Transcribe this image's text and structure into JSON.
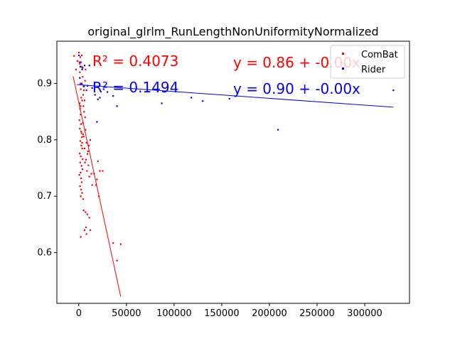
{
  "chart_data": {
    "type": "scatter",
    "title": "original_glrlm_RunLengthNonUniformityNormalized",
    "xlabel": "",
    "ylabel": "",
    "xlim": [
      -23000,
      347000
    ],
    "ylim": [
      0.51,
      0.975
    ],
    "x_ticks": [
      0,
      50000,
      100000,
      150000,
      200000,
      250000,
      300000
    ],
    "x_tick_labels": [
      "0",
      "50000",
      "100000",
      "150000",
      "200000",
      "250000",
      "300000"
    ],
    "y_ticks": [
      0.6,
      0.7,
      0.8,
      0.9
    ],
    "y_tick_labels": [
      "0.6",
      "0.7",
      "0.8",
      "0.9"
    ],
    "grid": false,
    "legend_position": "top-right",
    "series": [
      {
        "name": "ComBat",
        "color": "#ff0000",
        "points": [
          [
            -5000,
            0.949
          ],
          [
            -3000,
            0.925
          ],
          [
            -1500,
            0.94
          ],
          [
            0,
            0.955
          ],
          [
            500,
            0.938
          ],
          [
            1000,
            0.92
          ],
          [
            1500,
            0.9
          ],
          [
            2000,
            0.89
          ],
          [
            2500,
            0.875
          ],
          [
            800,
            0.865
          ],
          [
            1200,
            0.855
          ],
          [
            1800,
            0.845
          ],
          [
            600,
            0.835
          ],
          [
            2200,
            0.828
          ],
          [
            1000,
            0.82
          ],
          [
            2800,
            0.812
          ],
          [
            3200,
            0.805
          ],
          [
            1500,
            0.798
          ],
          [
            2600,
            0.79
          ],
          [
            3500,
            0.785
          ],
          [
            900,
            0.776
          ],
          [
            2000,
            0.771
          ],
          [
            4000,
            0.766
          ],
          [
            1400,
            0.76
          ],
          [
            2800,
            0.754
          ],
          [
            3800,
            0.748
          ],
          [
            1800,
            0.742
          ],
          [
            500,
            0.738
          ],
          [
            2400,
            0.732
          ],
          [
            3000,
            0.725
          ],
          [
            1200,
            0.718
          ],
          [
            2500,
            0.712
          ],
          [
            3500,
            0.706
          ],
          [
            2000,
            0.7
          ],
          [
            4500,
            0.695
          ],
          [
            5200,
            0.888
          ],
          [
            6000,
            0.87
          ],
          [
            4800,
            0.86
          ],
          [
            5500,
            0.85
          ],
          [
            6500,
            0.84
          ],
          [
            4200,
            0.83
          ],
          [
            7000,
            0.818
          ],
          [
            5000,
            0.806
          ],
          [
            8000,
            0.795
          ],
          [
            6000,
            0.785
          ],
          [
            9000,
            0.775
          ],
          [
            7500,
            0.765
          ],
          [
            10000,
            0.755
          ],
          [
            8500,
            0.745
          ],
          [
            11000,
            0.735
          ],
          [
            6500,
            0.76
          ],
          [
            9500,
            0.78
          ],
          [
            12000,
            0.8
          ],
          [
            10500,
            0.79
          ],
          [
            13000,
            0.74
          ],
          [
            14000,
            0.72
          ],
          [
            16000,
            0.74
          ],
          [
            18000,
            0.72
          ],
          [
            20000,
            0.762
          ],
          [
            22000,
            0.745
          ],
          [
            25000,
            0.745
          ],
          [
            19000,
            0.73
          ],
          [
            21000,
            0.7
          ],
          [
            5000,
            0.675
          ],
          [
            7000,
            0.672
          ],
          [
            9000,
            0.668
          ],
          [
            11000,
            0.662
          ],
          [
            7500,
            0.645
          ],
          [
            6000,
            0.64
          ],
          [
            8000,
            0.633
          ],
          [
            12000,
            0.64
          ],
          [
            2000,
            0.628
          ],
          [
            36000,
            0.617
          ],
          [
            44000,
            0.615
          ],
          [
            40000,
            0.586
          ],
          [
            1000,
            0.935
          ],
          [
            3000,
            0.93
          ],
          [
            4000,
            0.912
          ],
          [
            2500,
            0.9
          ],
          [
            3500,
            0.87
          ],
          [
            1800,
            0.86
          ],
          [
            4500,
            0.88
          ],
          [
            5500,
            0.895
          ],
          [
            6500,
            0.905
          ],
          [
            7000,
            0.925
          ],
          [
            3000,
            0.95
          ],
          [
            1500,
            0.947
          ],
          [
            2500,
            0.815
          ],
          [
            3500,
            0.795
          ],
          [
            4500,
            0.81
          ]
        ],
        "fit": {
          "x_range": [
            -6000,
            44000
          ],
          "label": "y = 0.86 + -0.00x",
          "r2_label": "R² = 0.4073"
        }
      },
      {
        "name": "Rider",
        "color": "#0000ff",
        "points": [
          [
            0,
            0.95
          ],
          [
            2000,
            0.938
          ],
          [
            4000,
            0.928
          ],
          [
            6000,
            0.932
          ],
          [
            11000,
            0.932
          ],
          [
            1000,
            0.91
          ],
          [
            3000,
            0.9
          ],
          [
            5000,
            0.895
          ],
          [
            8000,
            0.888
          ],
          [
            14000,
            0.892
          ],
          [
            17000,
            0.88
          ],
          [
            20000,
            0.872
          ],
          [
            22000,
            0.875
          ],
          [
            30000,
            0.885
          ],
          [
            36000,
            0.878
          ],
          [
            40000,
            0.86
          ],
          [
            87000,
            0.865
          ],
          [
            118000,
            0.875
          ],
          [
            130000,
            0.869
          ],
          [
            158000,
            0.873
          ],
          [
            209000,
            0.818
          ],
          [
            330000,
            0.888
          ],
          [
            19000,
            0.832
          ],
          [
            1500,
            0.93
          ],
          [
            3500,
            0.925
          ],
          [
            9000,
            0.896
          ],
          [
            26000,
            0.89
          ]
        ],
        "fit": {
          "x_range": [
            -2000,
            330000
          ],
          "label": "y = 0.90 + -0.00x",
          "r2_label": "R² = 0.1494"
        }
      }
    ],
    "fit_lines": [
      {
        "series": "ComBat",
        "y_at_x_start": 0.913,
        "y_at_x_end": 0.522
      },
      {
        "series": "Rider",
        "y_at_x_start": 0.898,
        "y_at_x_end": 0.858
      }
    ]
  }
}
